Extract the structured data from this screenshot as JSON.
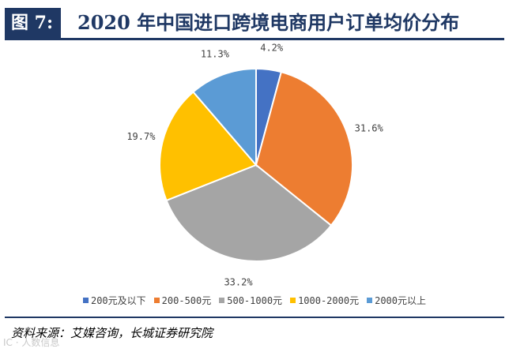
{
  "header": {
    "figure_label": "图 7:",
    "title": "2020 年中国进口跨境电商用户订单均价分布"
  },
  "chart_data": {
    "type": "pie",
    "title": "",
    "categories": [
      "200元及以下",
      "200-500元",
      "500-1000元",
      "1000-2000元",
      "2000元以上"
    ],
    "values": [
      4.2,
      31.6,
      33.2,
      19.7,
      11.3
    ],
    "labels": [
      "4.2%",
      "31.6%",
      "33.2%",
      "19.7%",
      "11.3%"
    ],
    "colors": [
      "#4472c4",
      "#ed7d31",
      "#a5a5a5",
      "#ffc000",
      "#5b9bd5"
    ],
    "start_angle": "12 o'clock, clockwise",
    "legend_position": "bottom"
  },
  "footer": {
    "source": "资料来源：艾媒咨询，长城证券研究院",
    "watermark": "IC · 人数信息"
  }
}
